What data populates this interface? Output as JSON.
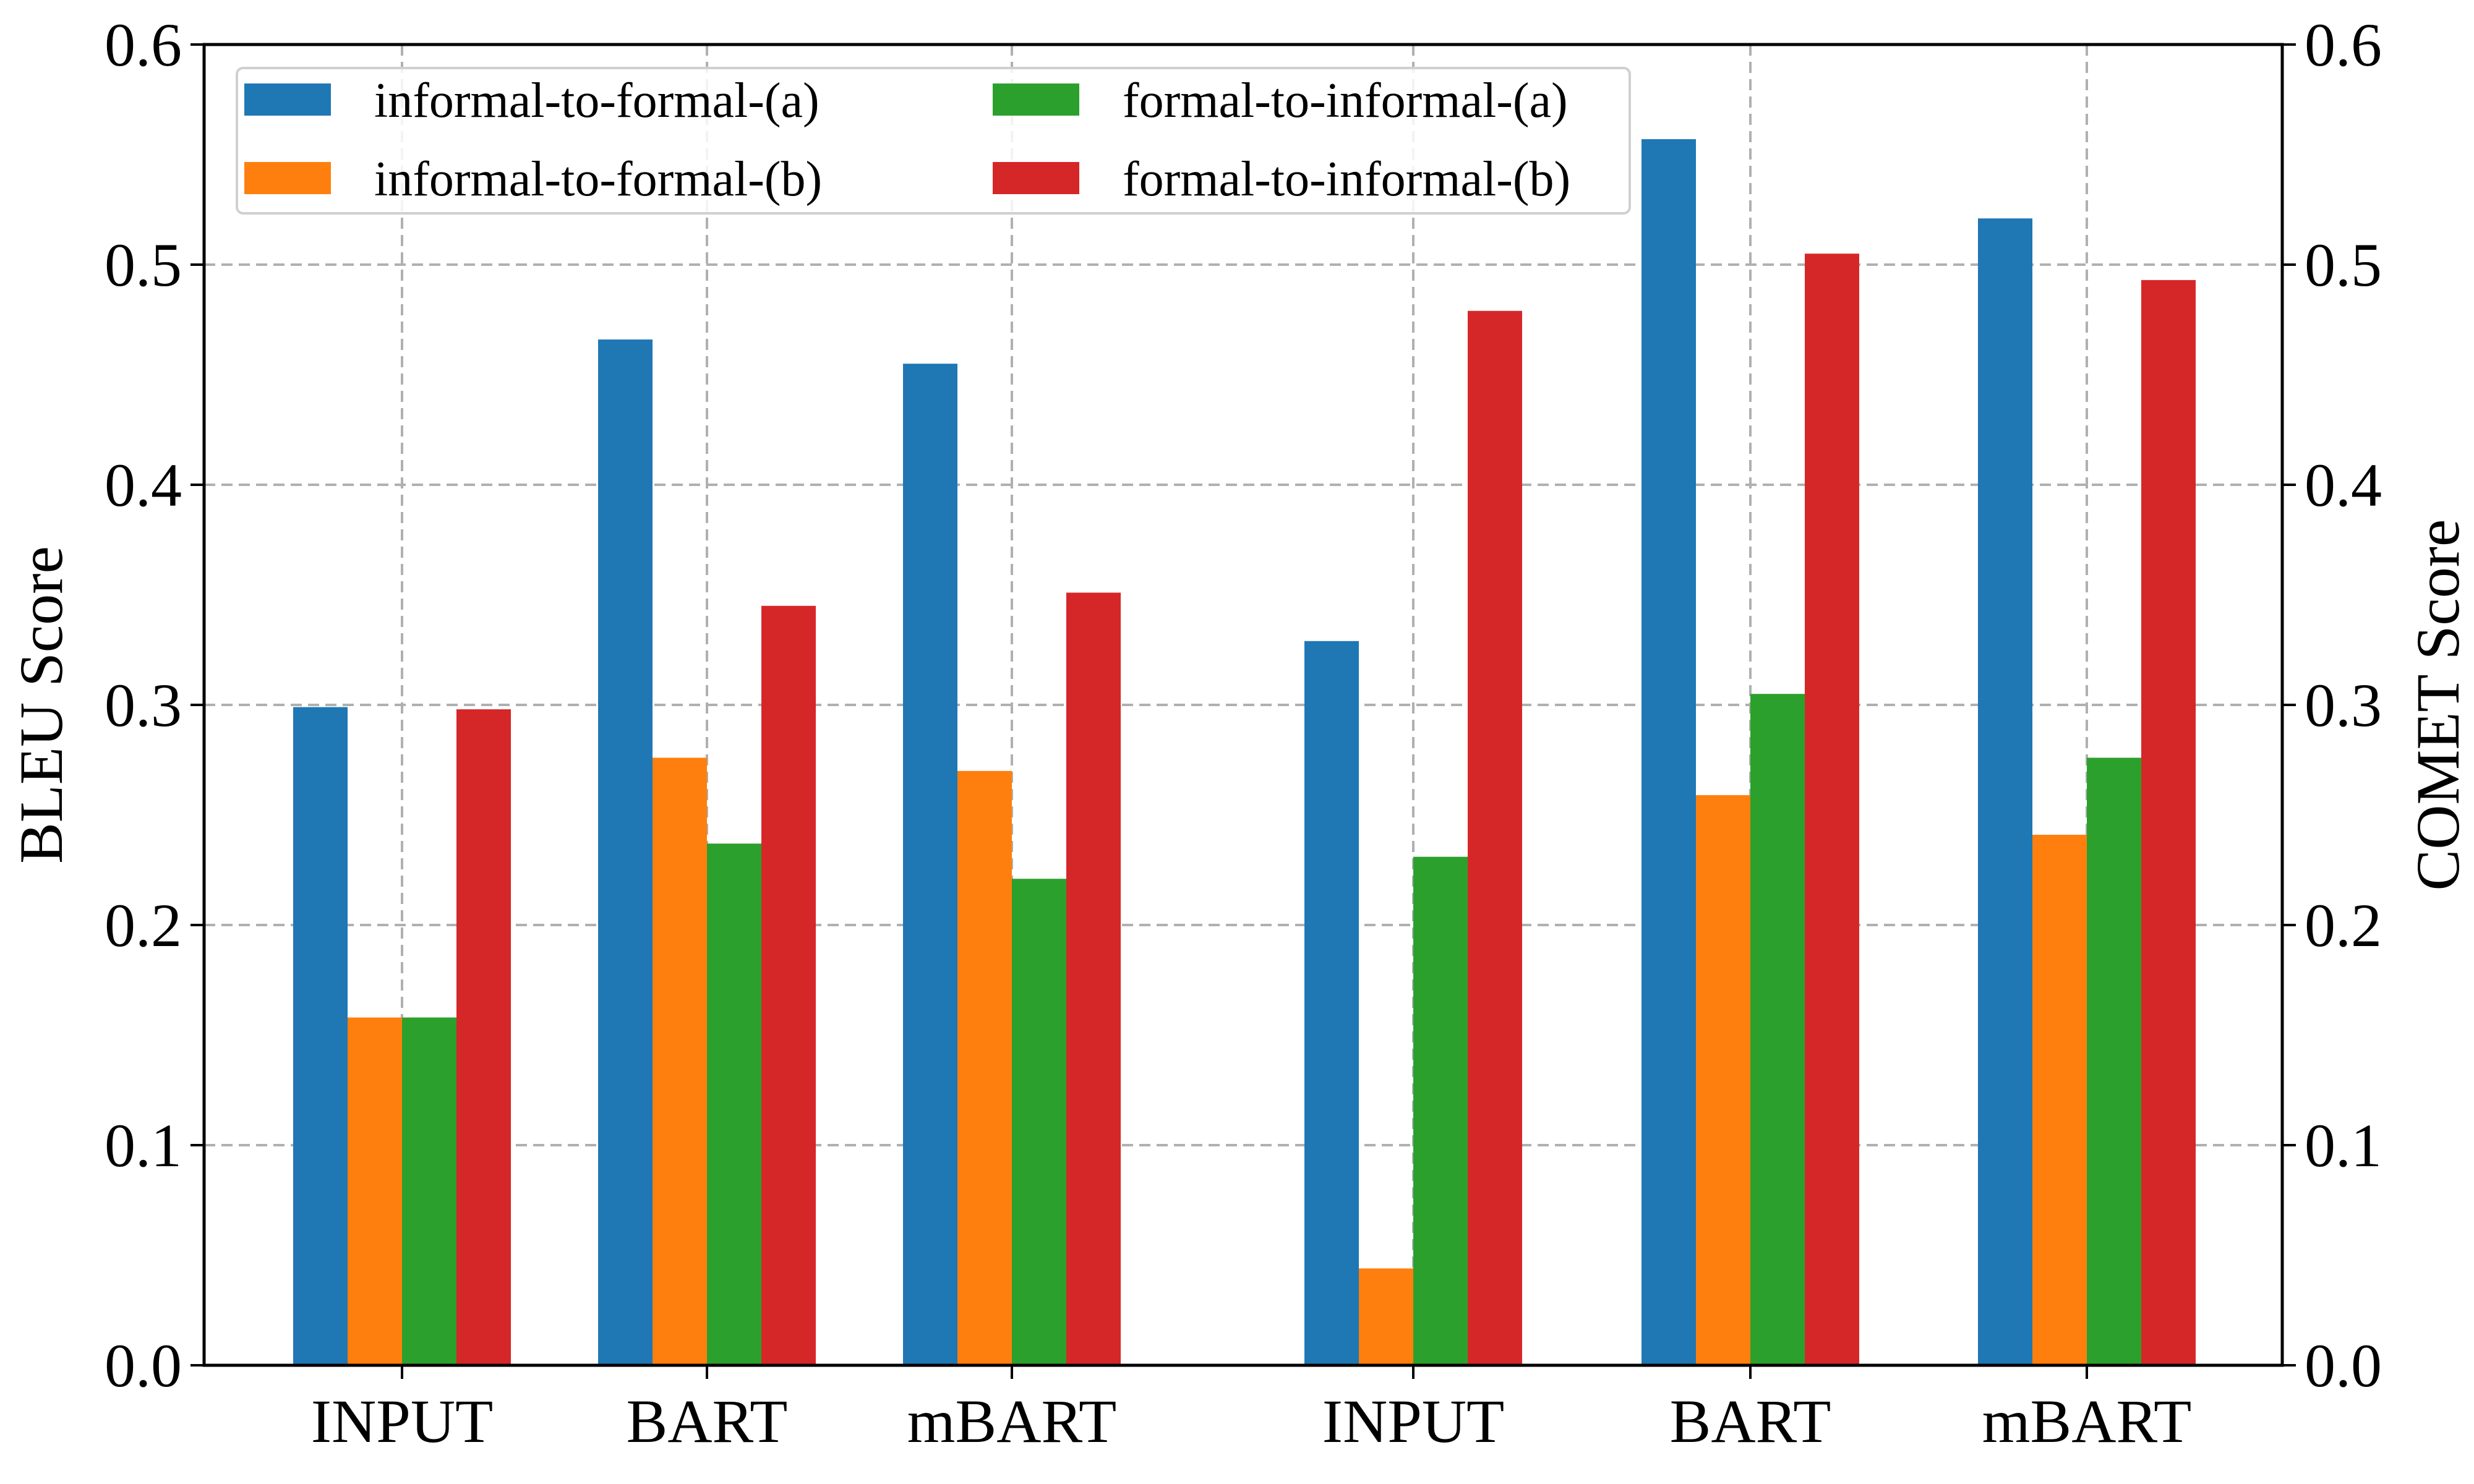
{
  "chart_data": {
    "type": "bar",
    "categories": [
      "INPUT",
      "BART",
      "mBART",
      "INPUT",
      "BART",
      "mBART"
    ],
    "category_groups": [
      {
        "axis": "left",
        "categories": [
          "INPUT",
          "BART",
          "mBART"
        ]
      },
      {
        "axis": "right",
        "categories": [
          "INPUT",
          "BART",
          "mBART"
        ]
      }
    ],
    "series": [
      {
        "name": "informal-to-formal-(a)",
        "color": "#1f77b4",
        "values": [
          0.299,
          0.466,
          0.455,
          0.329,
          0.557,
          0.521
        ]
      },
      {
        "name": "informal-to-formal-(b)",
        "color": "#ff7f0e",
        "values": [
          0.158,
          0.276,
          0.27,
          0.044,
          0.259,
          0.241
        ]
      },
      {
        "name": "formal-to-informal-(a)",
        "color": "#2ca02c",
        "values": [
          0.158,
          0.237,
          0.221,
          0.231,
          0.305,
          0.276
        ]
      },
      {
        "name": "formal-to-informal-(b)",
        "color": "#d62728",
        "values": [
          0.298,
          0.345,
          0.351,
          0.479,
          0.505,
          0.493
        ]
      }
    ],
    "ylabel_left": "BLEU Score",
    "ylabel_right": "COMET Score",
    "ylim_left": [
      0,
      0.6
    ],
    "ylim_right": [
      0,
      0.6
    ],
    "yticks_left": [
      "0.0",
      "0.1",
      "0.2",
      "0.3",
      "0.4",
      "0.5",
      "0.6"
    ],
    "yticks_right": [
      "0.0",
      "0.1",
      "0.2",
      "0.3",
      "0.4",
      "0.5",
      "0.6"
    ],
    "grid": true,
    "legend_placement": "top-left",
    "legend_columns": 2
  }
}
